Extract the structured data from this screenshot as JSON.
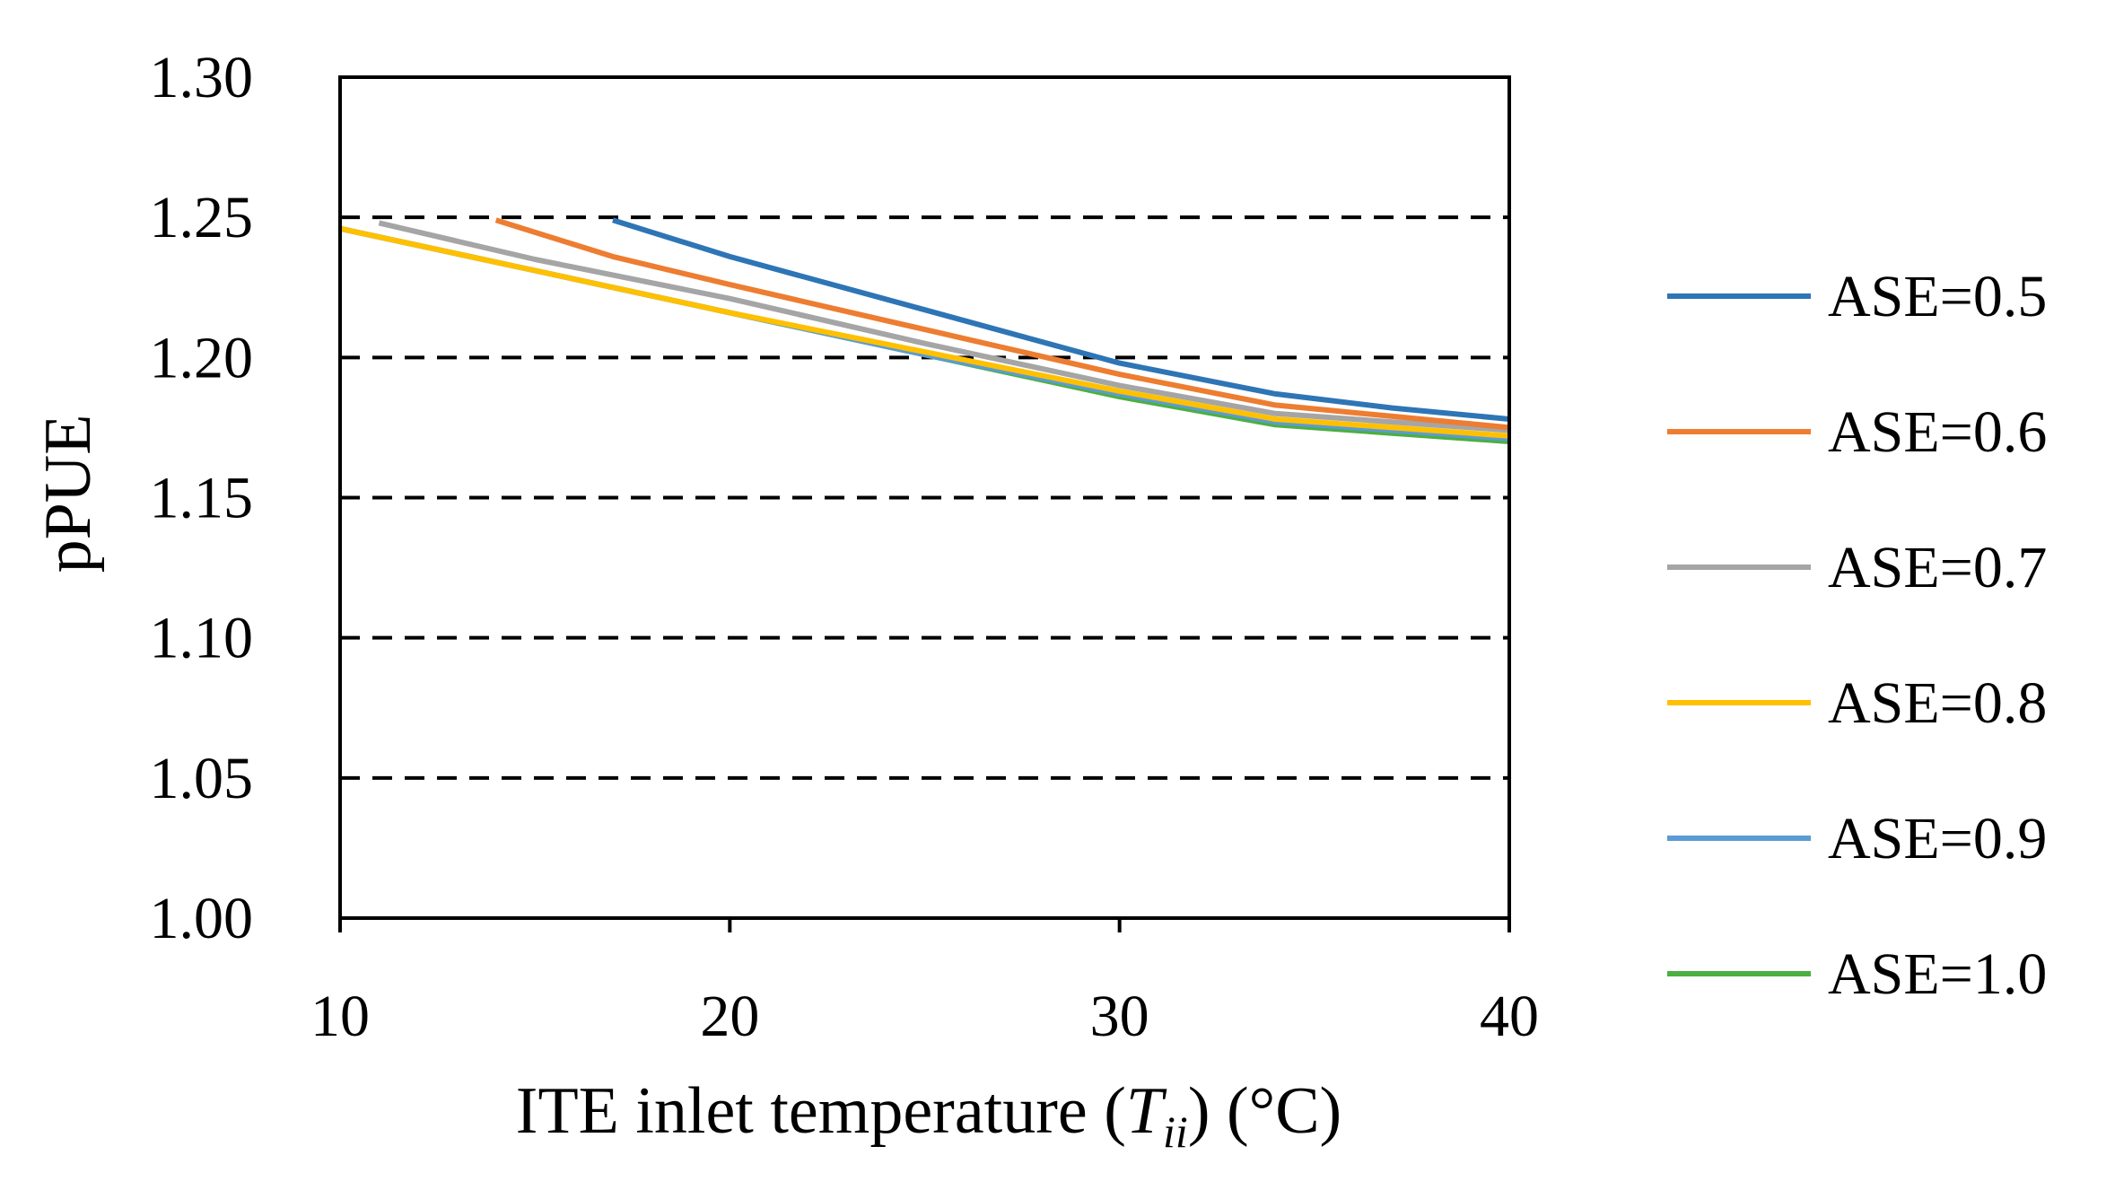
{
  "chart_data": {
    "type": "line",
    "title": "",
    "xlabel": {
      "prefix": "ITE inlet temperature (",
      "symbol": "T",
      "subscript": "ii",
      "suffix": ") (°C)"
    },
    "ylabel": "pPUE",
    "xlim": [
      10,
      40
    ],
    "ylim": [
      1.0,
      1.3
    ],
    "xticks": [
      10,
      20,
      30,
      40
    ],
    "xtick_labels": [
      "10",
      "20",
      "30",
      "40"
    ],
    "yticks": [
      1.0,
      1.05,
      1.1,
      1.15,
      1.2,
      1.25,
      1.3
    ],
    "ytick_labels": [
      "1.00",
      "1.05",
      "1.10",
      "1.15",
      "1.20",
      "1.25",
      "1.30"
    ],
    "grid": "horizontal dashed",
    "legend_position": "right",
    "series": [
      {
        "name": "ASE=0.5",
        "color": "#2e75b6",
        "x": [
          17,
          20,
          25,
          30,
          34,
          37,
          40
        ],
        "y": [
          1.249,
          1.236,
          1.217,
          1.198,
          1.187,
          1.182,
          1.178
        ]
      },
      {
        "name": "ASE=0.6",
        "color": "#ed7d31",
        "x": [
          14,
          17,
          20,
          25,
          30,
          34,
          37,
          40
        ],
        "y": [
          1.249,
          1.236,
          1.226,
          1.21,
          1.194,
          1.183,
          1.179,
          1.175
        ]
      },
      {
        "name": "ASE=0.7",
        "color": "#a5a5a5",
        "x": [
          11,
          15,
          20,
          25,
          30,
          34,
          37,
          40
        ],
        "y": [
          1.248,
          1.235,
          1.221,
          1.205,
          1.19,
          1.18,
          1.177,
          1.174
        ]
      },
      {
        "name": "ASE=0.8",
        "color": "#ffc000",
        "x": [
          10,
          15,
          20,
          25,
          30,
          34,
          37,
          40
        ],
        "y": [
          1.246,
          1.231,
          1.216,
          1.202,
          1.188,
          1.178,
          1.175,
          1.172
        ]
      },
      {
        "name": "ASE=0.9",
        "color": "#5b9bd5",
        "x": [
          10,
          15,
          20,
          25,
          30,
          34,
          37,
          40
        ],
        "y": [
          1.246,
          1.231,
          1.216,
          1.201,
          1.187,
          1.177,
          1.174,
          1.171
        ]
      },
      {
        "name": "ASE=1.0",
        "color": "#4caf40",
        "x": [
          10,
          15,
          20,
          25,
          30,
          34,
          37,
          40
        ],
        "y": [
          1.246,
          1.231,
          1.216,
          1.201,
          1.186,
          1.176,
          1.173,
          1.17
        ]
      }
    ]
  }
}
